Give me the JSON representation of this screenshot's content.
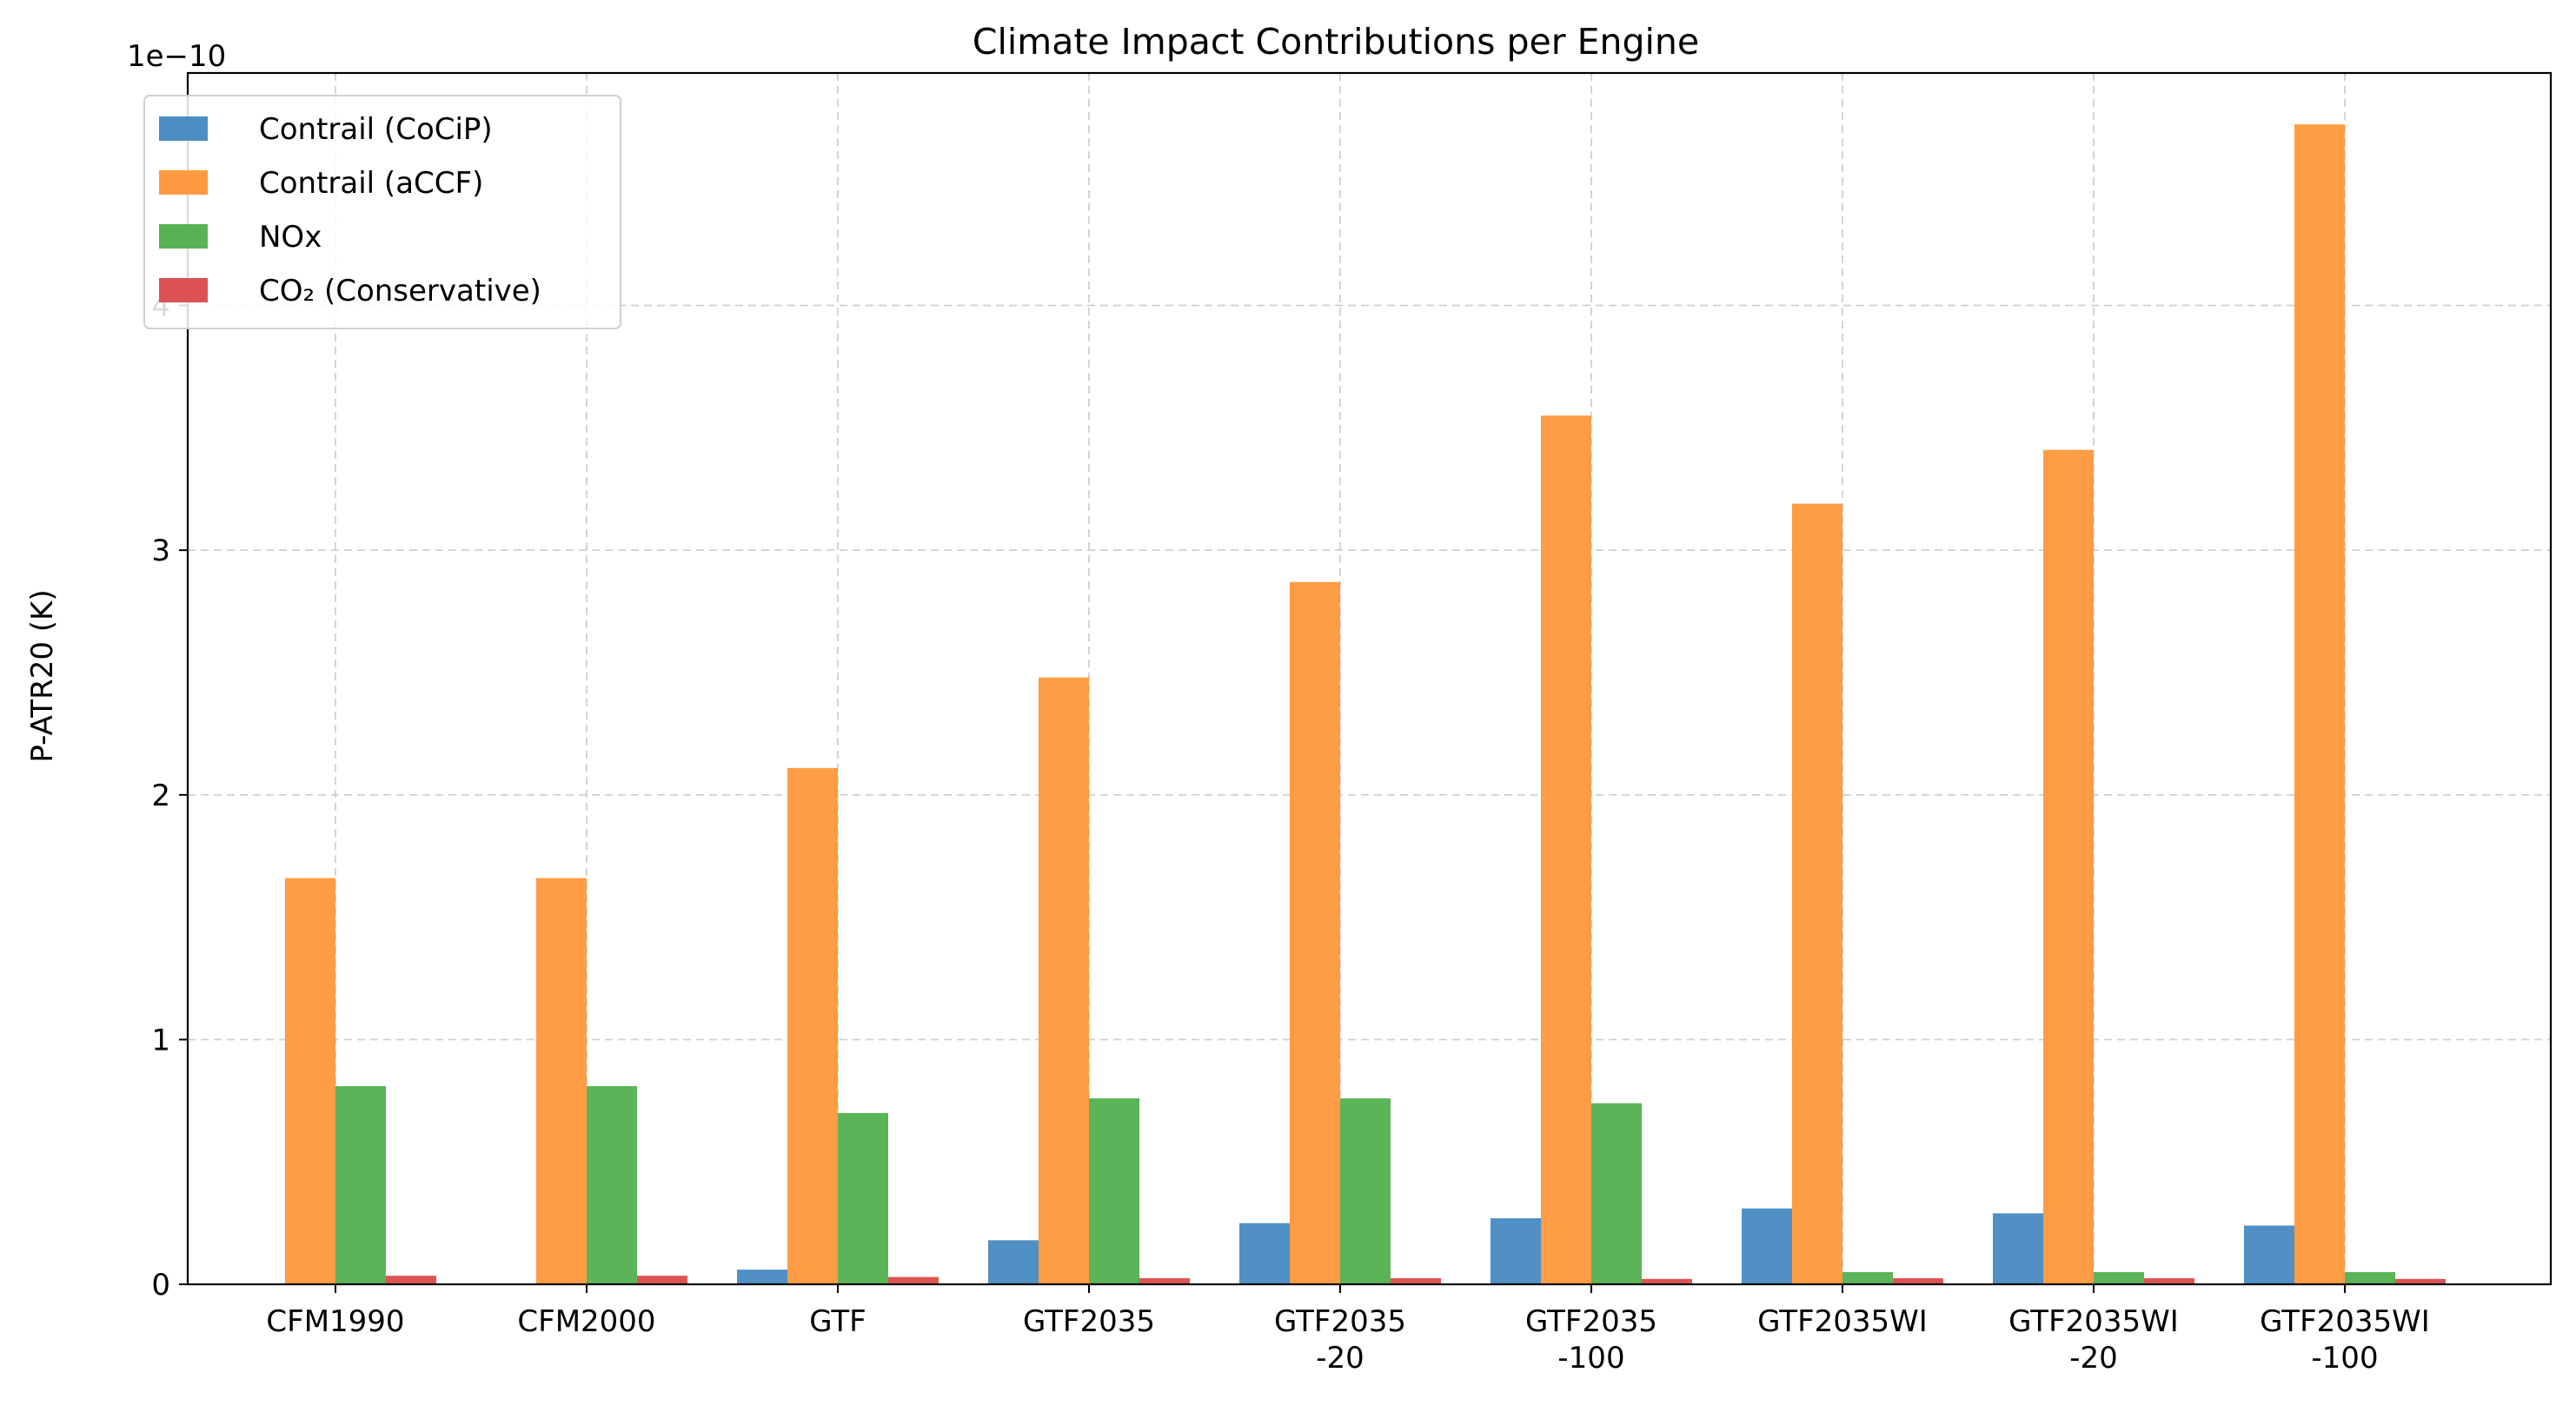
{
  "chart_data": {
    "type": "bar",
    "title": "Climate Impact Contributions per Engine",
    "ylabel": "P-ATR20 (K)",
    "xlabel": "",
    "offset_label": "1e−10",
    "ylim": [
      0,
      4.95
    ],
    "yticks": [
      0,
      1,
      2,
      3,
      4
    ],
    "ytick_labels": [
      "0",
      "1",
      "2",
      "3",
      "4"
    ],
    "grid": true,
    "legend_position": "top-left",
    "categories": [
      [
        "CFM1990"
      ],
      [
        "CFM2000"
      ],
      [
        "GTF"
      ],
      [
        "GTF2035"
      ],
      [
        "GTF2035",
        "-20"
      ],
      [
        "GTF2035",
        "-100"
      ],
      [
        "GTF2035WI"
      ],
      [
        "GTF2035WI",
        "-20"
      ],
      [
        "GTF2035WI",
        "-100"
      ]
    ],
    "series": [
      {
        "name": "Contrail (CoCiP)",
        "color": "#4c8ec4",
        "values": [
          0,
          0,
          0.06,
          0.18,
          0.25,
          0.27,
          0.31,
          0.29,
          0.24
        ]
      },
      {
        "name": "Contrail (aCCF)",
        "color": "#ff9a42",
        "values": [
          1.66,
          1.66,
          2.11,
          2.48,
          2.87,
          3.55,
          3.19,
          3.41,
          4.74
        ]
      },
      {
        "name": "NOx",
        "color": "#58b354",
        "values": [
          0.81,
          0.81,
          0.7,
          0.76,
          0.76,
          0.74,
          0.05,
          0.05,
          0.05
        ]
      },
      {
        "name": "CO₂ (Conservative)",
        "color": "#dc5151",
        "values": [
          0.035,
          0.035,
          0.03,
          0.025,
          0.025,
          0.022,
          0.025,
          0.025,
          0.022
        ]
      }
    ]
  }
}
